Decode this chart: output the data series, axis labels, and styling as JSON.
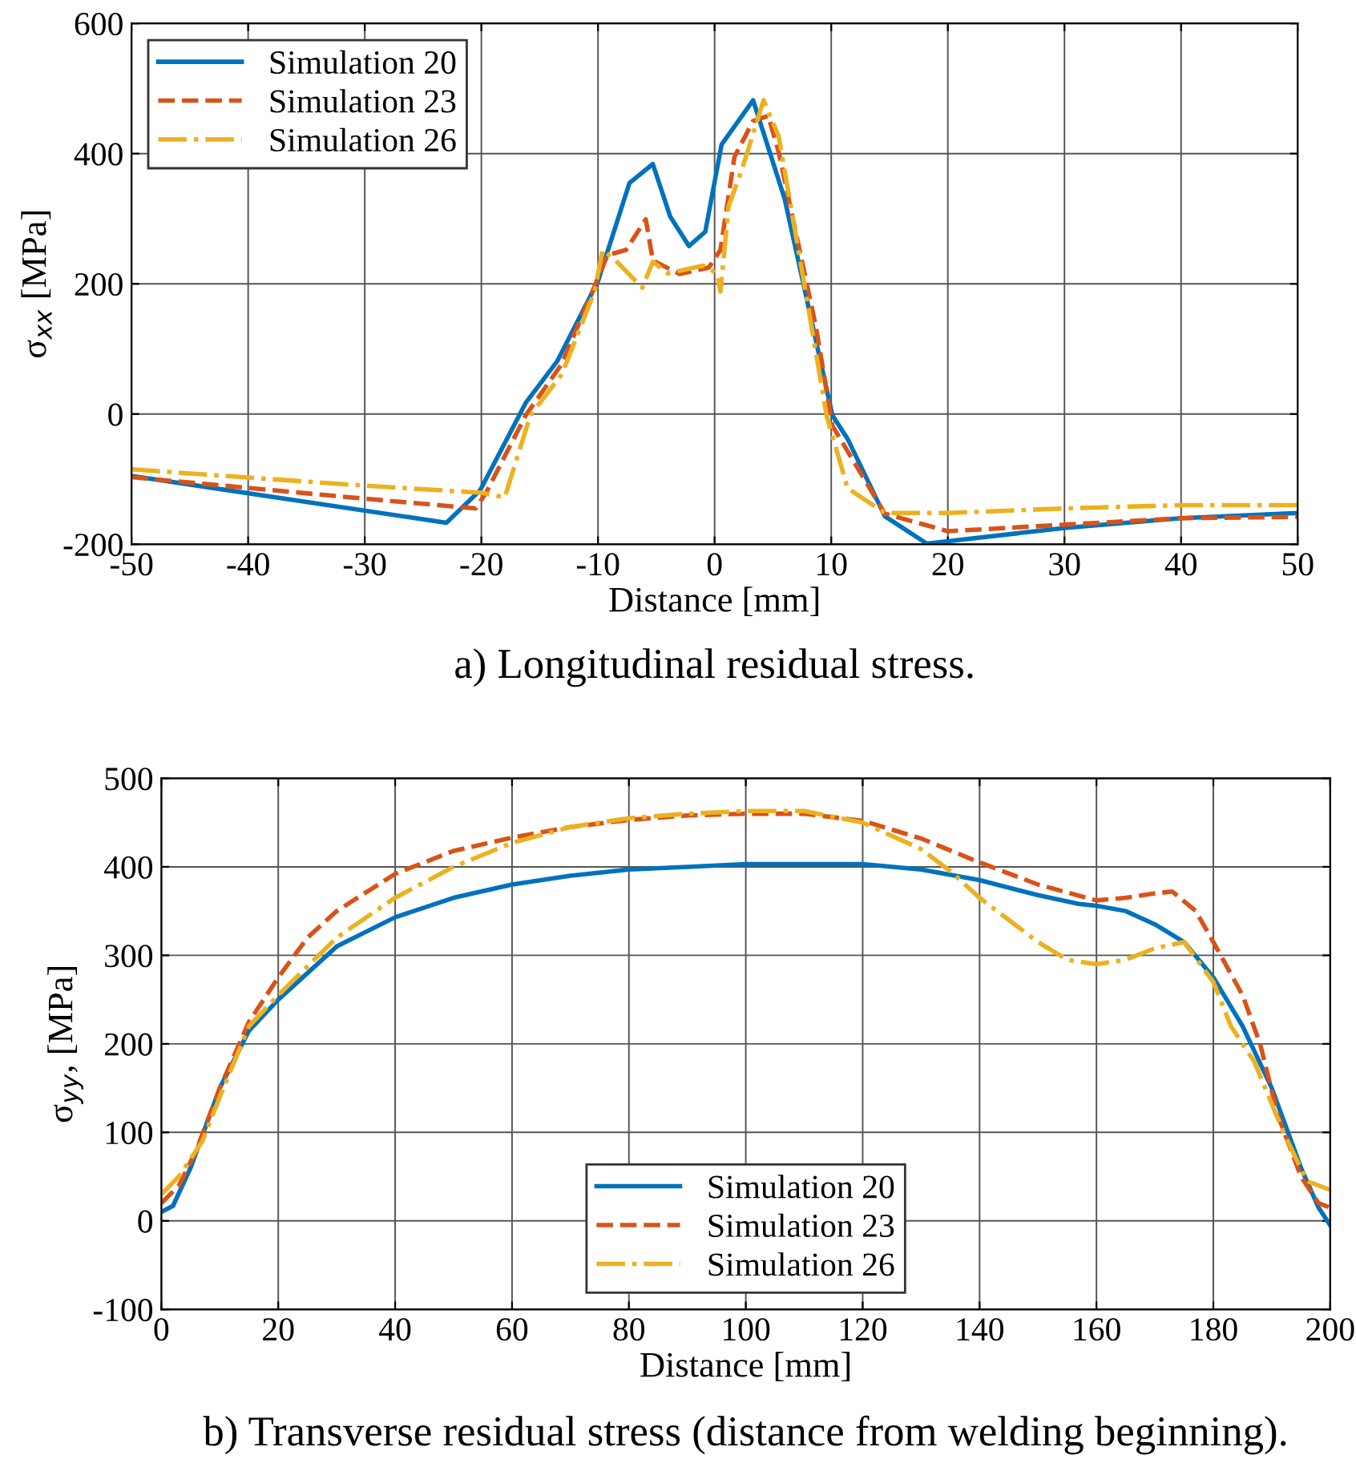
{
  "chart_data": [
    {
      "type": "line",
      "title": "a) Longitudinal residual stress.",
      "xlabel": "Distance [mm]",
      "ylabel": "σ$_{xx}$ [MPa]",
      "xlim": [
        -50,
        50
      ],
      "ylim": [
        -200,
        600
      ],
      "xticks": [
        -50,
        -40,
        -30,
        -20,
        -10,
        0,
        10,
        20,
        30,
        40,
        50
      ],
      "yticks": [
        -200,
        0,
        200,
        400,
        600
      ],
      "grid": true,
      "legend": "top left",
      "series": [
        {
          "name": "Simulation 20",
          "color": "#0072bd",
          "line_style": "solid",
          "x": [
            -50,
            -23,
            -20.1,
            -16.2,
            -13.5,
            -10,
            -7.3,
            -5.3,
            -3.8,
            -2.2,
            -0.8,
            0.6,
            3.3,
            6,
            10.1,
            11.4,
            14.6,
            18.2,
            30,
            40,
            50
          ],
          "values": [
            -95,
            -167,
            -117,
            17,
            81,
            204,
            355,
            384,
            303,
            258,
            280,
            414,
            482,
            331,
            -2,
            -38,
            -157,
            -199,
            -175,
            -160,
            -152
          ]
        },
        {
          "name": "Simulation 23",
          "color": "#d95319",
          "line_style": "dashed",
          "x": [
            -50,
            -30,
            -20.5,
            -19.6,
            -16.2,
            -13.1,
            -10.3,
            -9.2,
            -7.6,
            -5.9,
            -5.3,
            -3,
            -0.5,
            0.5,
            1.7,
            3.3,
            4.6,
            5.5,
            8.7,
            10.1,
            14.6,
            20,
            30,
            40,
            50
          ],
          "values": [
            -97,
            -130,
            -145,
            -121,
            -2,
            77,
            196,
            244,
            252,
            299,
            236,
            215,
            225,
            252,
            395,
            450,
            458,
            402,
            133,
            -18,
            -153,
            -180,
            -170,
            -160,
            -158
          ]
        },
        {
          "name": "Simulation 26",
          "color": "#edb120",
          "line_style": "dashdot",
          "x": [
            -50,
            -30,
            -20,
            -18,
            -15.8,
            -13.1,
            -10.3,
            -9.6,
            -8.5,
            -6.2,
            -5.3,
            -4,
            -1,
            0.2,
            0.5,
            1.2,
            2.4,
            4.2,
            5.5,
            7.8,
            9.6,
            11.4,
            14.6,
            20,
            30,
            40,
            50
          ],
          "values": [
            -85,
            -110,
            -121,
            -128,
            -2,
            61,
            188,
            252,
            236,
            194,
            234,
            216,
            228,
            216,
            188,
            319,
            379,
            482,
            426,
            188,
            -2,
            -114,
            -152,
            -152,
            -145,
            -140,
            -140
          ]
        }
      ]
    },
    {
      "type": "line",
      "title": "b) Transverse residual stress (distance from welding beginning).",
      "xlabel": "Distance [mm]",
      "ylabel": "σ$_{yy}$, [MPa]",
      "xlim": [
        0,
        200
      ],
      "ylim": [
        -100,
        500
      ],
      "xticks": [
        0,
        20,
        40,
        60,
        80,
        100,
        120,
        140,
        160,
        180,
        200
      ],
      "yticks": [
        -100,
        0,
        100,
        200,
        300,
        400,
        500
      ],
      "grid": true,
      "legend": "bottom",
      "series": [
        {
          "name": "Simulation 20",
          "color": "#0072bd",
          "line_style": "solid",
          "x": [
            0,
            2,
            5,
            10,
            15,
            20,
            30,
            40,
            50,
            60,
            70,
            80,
            90,
            100,
            110,
            120,
            130,
            140,
            150,
            157,
            160,
            165,
            170,
            175,
            180,
            185,
            190,
            195,
            198,
            200
          ],
          "values": [
            10,
            17,
            60,
            150,
            215,
            250,
            310,
            343,
            365,
            380,
            390,
            397,
            400,
            403,
            403,
            403,
            397,
            385,
            368,
            358,
            356,
            350,
            335,
            315,
            275,
            220,
            150,
            60,
            15,
            -5
          ]
        },
        {
          "name": "Simulation 23",
          "color": "#d95319",
          "line_style": "dashed",
          "x": [
            0,
            3,
            6,
            10,
            15,
            20,
            25,
            30,
            40,
            50,
            60,
            70,
            80,
            90,
            100,
            110,
            120,
            130,
            140,
            150,
            160,
            165,
            170,
            173,
            177,
            180,
            185,
            188,
            191,
            195,
            198,
            200
          ],
          "values": [
            20,
            40,
            80,
            150,
            225,
            275,
            320,
            350,
            392,
            418,
            433,
            445,
            453,
            458,
            460,
            460,
            452,
            432,
            405,
            380,
            362,
            365,
            370,
            372,
            350,
            315,
            255,
            200,
            120,
            50,
            20,
            15
          ]
        },
        {
          "name": "Simulation 26",
          "color": "#edb120",
          "line_style": "dashdot",
          "x": [
            0,
            3,
            7,
            10,
            15,
            20,
            30,
            40,
            50,
            60,
            70,
            80,
            90,
            100,
            110,
            120,
            130,
            135,
            140,
            150,
            155,
            160,
            165,
            170,
            175,
            180,
            183,
            187,
            192,
            196,
            200
          ],
          "values": [
            30,
            50,
            90,
            140,
            220,
            255,
            320,
            365,
            400,
            427,
            445,
            455,
            460,
            463,
            463,
            450,
            420,
            395,
            365,
            315,
            295,
            290,
            295,
            308,
            315,
            270,
            220,
            180,
            100,
            45,
            35
          ]
        }
      ]
    }
  ]
}
